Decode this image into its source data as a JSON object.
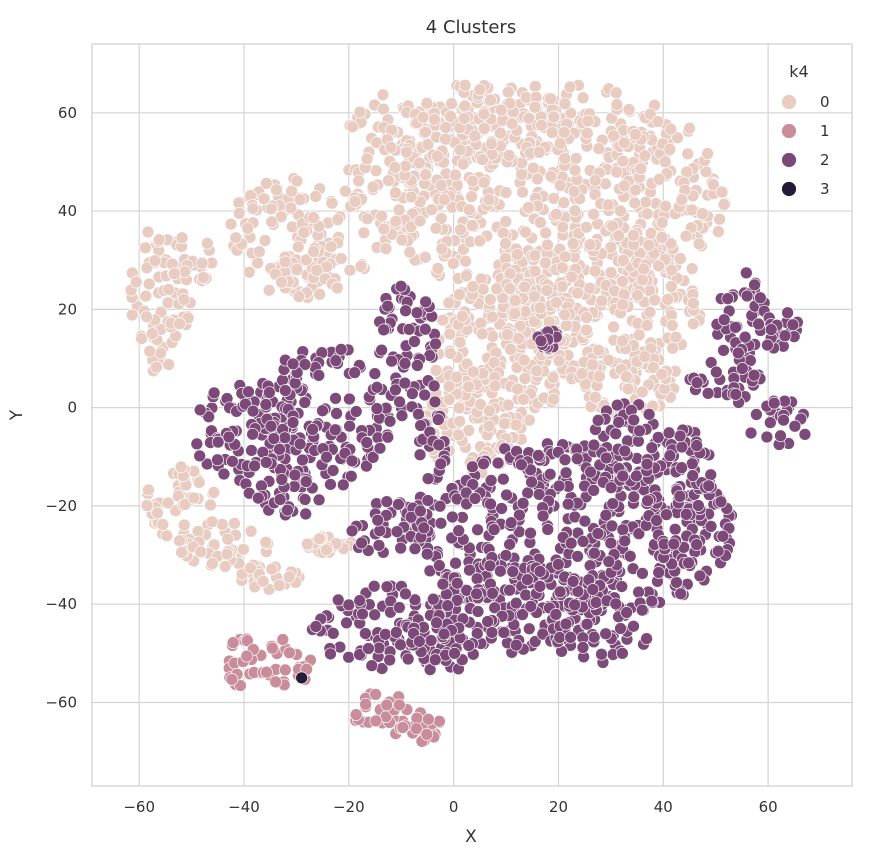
{
  "chart_data": {
    "type": "scatter",
    "title": "4 Clusters",
    "xlabel": "X",
    "ylabel": "Y",
    "xlim": [
      -69,
      76
    ],
    "ylim": [
      -77,
      74
    ],
    "xticks": [
      -60,
      -40,
      -20,
      0,
      20,
      40,
      60
    ],
    "xtick_labels": [
      "−60",
      "−40",
      "−20",
      "0",
      "20",
      "40",
      "60"
    ],
    "yticks": [
      -60,
      -40,
      -20,
      0,
      20,
      40,
      60
    ],
    "ytick_labels": [
      "−60",
      "−40",
      "−20",
      "0",
      "20",
      "40",
      "60"
    ],
    "grid": true,
    "legend": {
      "title": "k4",
      "position": "top-right",
      "entries": [
        {
          "label": "0",
          "color": "#e8cbc1"
        },
        {
          "label": "1",
          "color": "#c98c9a"
        },
        {
          "label": "2",
          "color": "#7b4877"
        },
        {
          "label": "3",
          "color": "#241a36"
        }
      ]
    },
    "series": [
      {
        "name": "0",
        "color": "#e8cbc1",
        "regions": [
          {
            "cx": 20,
            "cy": 42,
            "rx": 32,
            "ry": 24
          },
          {
            "cx": 2,
            "cy": 58,
            "rx": 22,
            "ry": 8
          },
          {
            "cx": 28,
            "cy": 22,
            "rx": 20,
            "ry": 16
          },
          {
            "cx": 10,
            "cy": 12,
            "rx": 14,
            "ry": 16
          },
          {
            "cx": 4,
            "cy": -2,
            "rx": 10,
            "ry": 12
          },
          {
            "cx": 33,
            "cy": 6,
            "rx": 10,
            "ry": 8
          },
          {
            "cx": -13,
            "cy": 44,
            "rx": 8,
            "ry": 12
          },
          {
            "cx": -32,
            "cy": 35,
            "rx": 11,
            "ry": 12
          },
          {
            "cx": -26,
            "cy": 28,
            "rx": 9,
            "ry": 6
          },
          {
            "cx": -56,
            "cy": 22,
            "rx": 6,
            "ry": 15
          },
          {
            "cx": -50,
            "cy": 30,
            "rx": 4,
            "ry": 6
          },
          {
            "cx": -52,
            "cy": -20,
            "rx": 7,
            "ry": 8
          },
          {
            "cx": -44,
            "cy": -29,
            "rx": 9,
            "ry": 6
          },
          {
            "cx": -35,
            "cy": -34,
            "rx": 6,
            "ry": 3
          },
          {
            "cx": -23,
            "cy": -28,
            "rx": 5,
            "ry": 2
          }
        ]
      },
      {
        "name": "1",
        "color": "#c98c9a",
        "regions": [
          {
            "cx": -40,
            "cy": -52,
            "rx": 4,
            "ry": 5
          },
          {
            "cx": -32,
            "cy": -52,
            "rx": 5,
            "ry": 5
          },
          {
            "cx": -14,
            "cy": -63,
            "rx": 7,
            "ry": 5
          },
          {
            "cx": -6,
            "cy": -65,
            "rx": 4,
            "ry": 3
          }
        ]
      },
      {
        "name": "2",
        "color": "#7b4877",
        "regions": [
          {
            "cx": 22,
            "cy": -25,
            "rx": 32,
            "ry": 18
          },
          {
            "cx": 33,
            "cy": -8,
            "rx": 8,
            "ry": 9
          },
          {
            "cx": 43,
            "cy": -18,
            "rx": 7,
            "ry": 15
          },
          {
            "cx": 12,
            "cy": -40,
            "rx": 16,
            "ry": 10
          },
          {
            "cx": 28,
            "cy": -45,
            "rx": 10,
            "ry": 7
          },
          {
            "cx": -12,
            "cy": -25,
            "rx": 8,
            "ry": 6
          },
          {
            "cx": -25,
            "cy": -2,
            "rx": 13,
            "ry": 15
          },
          {
            "cx": -40,
            "cy": -5,
            "rx": 10,
            "ry": 10
          },
          {
            "cx": -33,
            "cy": -18,
            "rx": 8,
            "ry": 5
          },
          {
            "cx": -9,
            "cy": 12,
            "rx": 6,
            "ry": 14
          },
          {
            "cx": -4,
            "cy": -5,
            "rx": 3,
            "ry": 10
          },
          {
            "cx": -13,
            "cy": -45,
            "rx": 14,
            "ry": 9
          },
          {
            "cx": -2,
            "cy": -48,
            "rx": 8,
            "ry": 6
          },
          {
            "cx": 55,
            "cy": 18,
            "rx": 5,
            "ry": 10
          },
          {
            "cx": 52,
            "cy": 6,
            "rx": 7,
            "ry": 6
          },
          {
            "cx": 62,
            "cy": -3,
            "rx": 6,
            "ry": 5
          },
          {
            "cx": 62,
            "cy": 16,
            "rx": 4,
            "ry": 4
          },
          {
            "cx": 18,
            "cy": 14,
            "rx": 2,
            "ry": 2
          }
        ]
      },
      {
        "name": "3",
        "color": "#241a36",
        "points": [
          [
            -29,
            -55
          ]
        ]
      }
    ]
  }
}
